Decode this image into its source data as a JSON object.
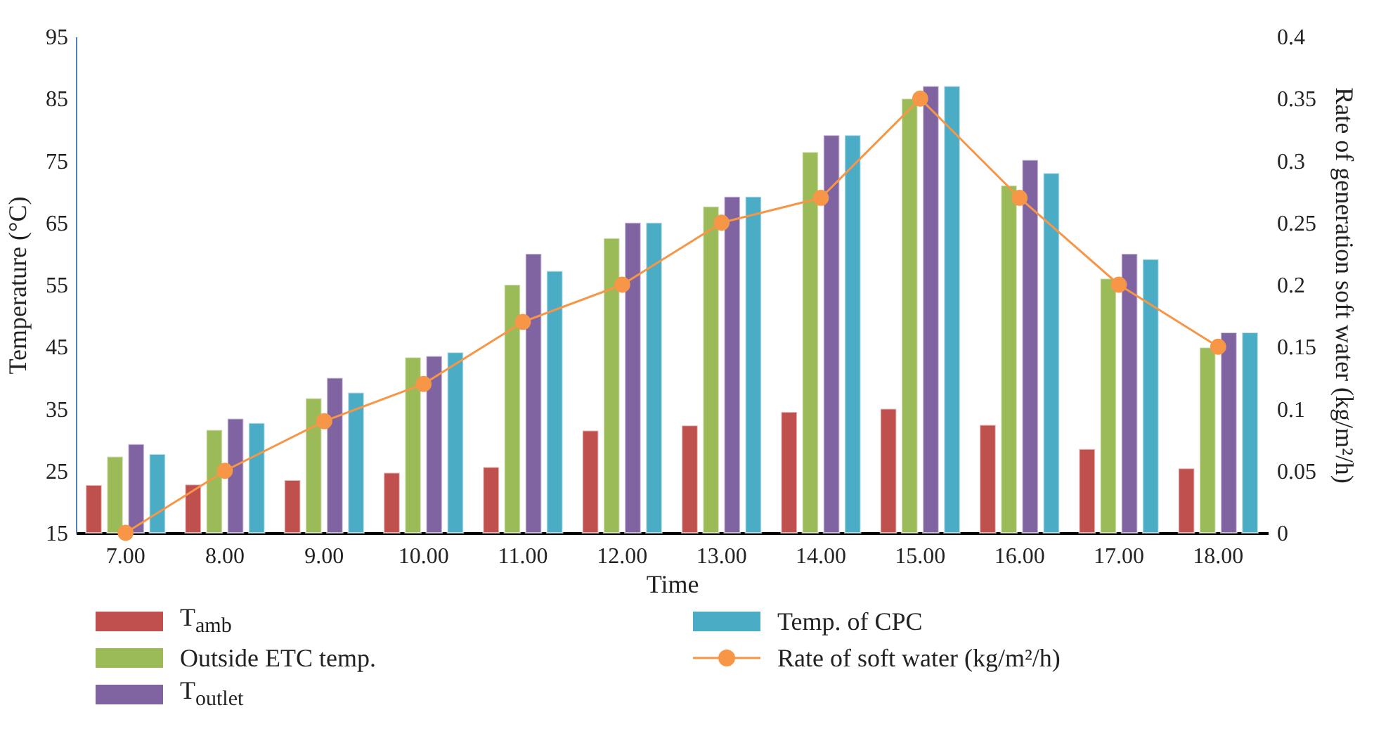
{
  "chart_data": {
    "type": "bar",
    "xlabel": "Time",
    "ylabel": "Temperature (°C)",
    "y2label": "Rate of generation soft water (kg/m²/h)",
    "categories": [
      "7.00",
      "8.00",
      "9.00",
      "10.00",
      "11.00",
      "12.00",
      "13.00",
      "14.00",
      "15.00",
      "16.00",
      "17.00",
      "18.00"
    ],
    "series": [
      {
        "name": "T$_{amb}$",
        "color": "#c0504d",
        "values": [
          22.7,
          22.8,
          23.5,
          24.7,
          25.6,
          31.5,
          32.3,
          34.5,
          35,
          32.4,
          28.5,
          25.4
        ]
      },
      {
        "name": "Outside ETC temp.",
        "color": "#9bbb59",
        "values": [
          27.3,
          31.6,
          36.7,
          43.3,
          55,
          62.5,
          67.6,
          76.4,
          85,
          71,
          56,
          44.9
        ]
      },
      {
        "name": "T$_{outlet}$",
        "color": "#8064a2",
        "values": [
          29.3,
          33.4,
          40,
          43.5,
          60,
          65,
          69.2,
          79.1,
          87,
          75.1,
          60,
          47.3
        ]
      },
      {
        "name": "Temp. of CPC",
        "color": "#4bacc6",
        "values": [
          27.7,
          32.7,
          37.6,
          44.1,
          57.2,
          65,
          69.2,
          79.1,
          87,
          73,
          59.1,
          47.3
        ]
      },
      {
        "name": "Rate of soft water (kg/m²/h)",
        "type": "line",
        "axis": "y2",
        "color": "#f79646",
        "marker": "circle",
        "line_style": "solid",
        "values": [
          0,
          0.05,
          0.09,
          0.12,
          0.17,
          0.2,
          0.25,
          0.27,
          0.35,
          0.27,
          0.2,
          0.15
        ]
      }
    ],
    "ylim": [
      15,
      95
    ],
    "yticks": [
      15,
      25,
      35,
      45,
      55,
      65,
      75,
      85,
      95
    ],
    "y2lim": [
      0,
      0.4
    ],
    "y2ticks": [
      0,
      0.05,
      0.1,
      0.15,
      0.2,
      0.25,
      0.3,
      0.35,
      0.4
    ],
    "legend": "bottom"
  }
}
